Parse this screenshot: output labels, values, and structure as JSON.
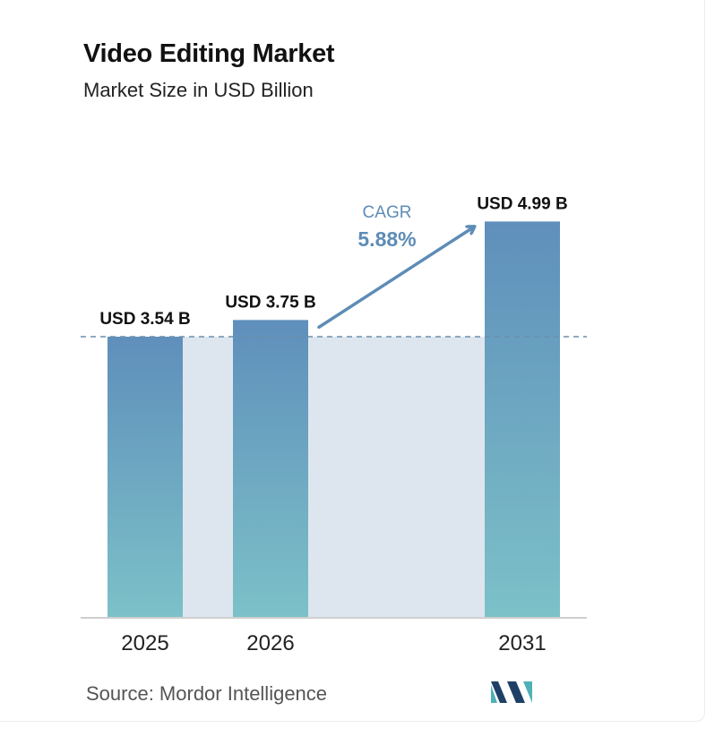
{
  "header": {
    "title": "Video Editing Market",
    "subtitle": "Market Size in USD Billion"
  },
  "chart_data": {
    "type": "bar",
    "categories": [
      "2025",
      "2026",
      "2031"
    ],
    "values": [
      3.54,
      3.75,
      4.99
    ],
    "value_labels": [
      "USD 3.54 B",
      "USD 3.75 B",
      "USD 4.99 B"
    ],
    "title": "Video Editing Market",
    "subtitle": "Market Size in USD Billion",
    "xlabel": "",
    "ylabel": "",
    "grid": false,
    "annotations": {
      "cagr_label": "CAGR",
      "cagr_value": "5.88%"
    }
  },
  "colors": {
    "bar_top": "#5f8fbb",
    "bar_bottom": "#7cc1c8",
    "band": "#dde6ef",
    "arrow": "#5d8cb6",
    "dashed_line": "#6b8fae",
    "logo_dark": "#1f3f66",
    "logo_light": "#4fb1b5"
  },
  "footer": {
    "source_text": "Source:  Mordor Intelligence",
    "logo_icon": "mordor-intelligence-logo-icon"
  }
}
